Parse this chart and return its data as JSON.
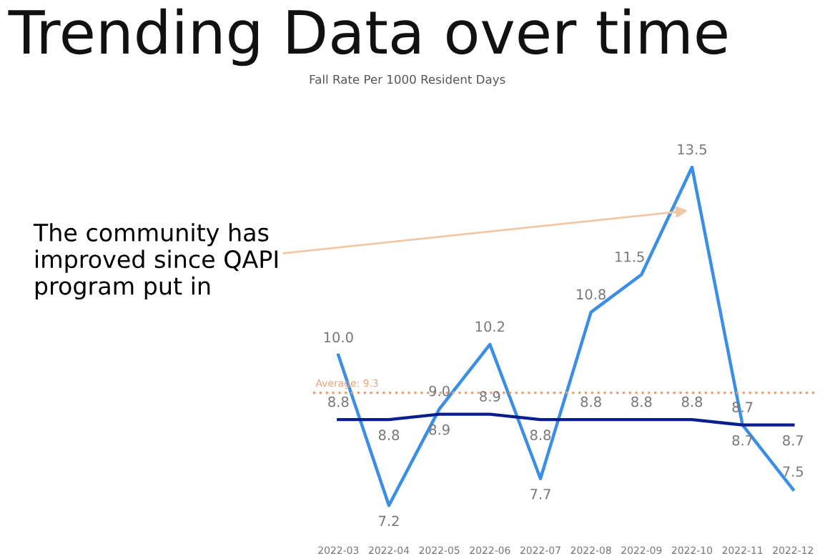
{
  "chart_data": {
    "type": "line",
    "title": "Trending Data over time",
    "subtitle": "Fall Rate Per 1000 Resident Days",
    "categories": [
      "2022-03",
      "2022-04",
      "2022-05",
      "2022-06",
      "2022-07",
      "2022-08",
      "2022-09",
      "2022-10",
      "2022-11",
      "2022-12"
    ],
    "series": [
      {
        "color": "#3a8ee6",
        "values": [
          10.0,
          7.2,
          9.0,
          10.2,
          7.7,
          10.8,
          11.5,
          13.5,
          8.7,
          7.5
        ],
        "value_labels": [
          "10.0",
          "7.2",
          "9.0",
          "10.2",
          "7.7",
          "10.8",
          "11.5",
          "13.5",
          "8.7",
          "7.5"
        ]
      },
      {
        "color": "#0a1f8f",
        "values": [
          8.8,
          8.8,
          8.9,
          8.9,
          8.8,
          8.8,
          8.8,
          8.8,
          8.7,
          8.7
        ],
        "value_labels": [
          "8.8",
          "8.8",
          "8.9",
          "8.9",
          "8.8",
          "8.8",
          "8.8",
          "8.8",
          "8.7",
          "8.7"
        ]
      }
    ],
    "tick_labels": "x",
    "marker": "none",
    "grid": false,
    "legend": false,
    "ref_lines": [
      {
        "axis": "y",
        "value": 9.3,
        "label": "Average: 9.3",
        "color": "#e8a07a",
        "line_style": "dotted"
      }
    ],
    "annotations": [
      {
        "text": "The community has improved since QAPI program put in",
        "x": "2022-10",
        "y": 12.7
      }
    ]
  }
}
